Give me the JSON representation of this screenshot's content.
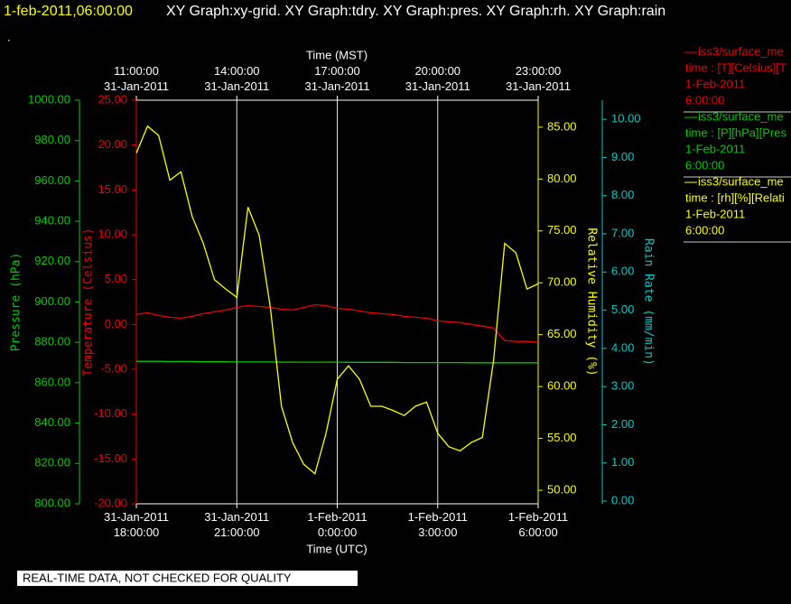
{
  "chart_data": {
    "type": "line",
    "title_time": "1-feb-2011,06:00:00",
    "title": "XY Graph:xy-grid.  XY Graph:tdry.  XY Graph:pres.  XY Graph:rh.  XY Graph:rain",
    "subtitle": ".",
    "xlabel": "Time (UTC)",
    "x2label": "Time (MST)",
    "xlim": [
      "2011-01-31T18:00:00",
      "2011-02-01T06:00:00"
    ],
    "xticks": [
      {
        "value": "2011-01-31T18:00:00",
        "label": [
          "31-Jan-2011",
          "18:00:00"
        ]
      },
      {
        "value": "2011-01-31T21:00:00",
        "label": [
          "31-Jan-2011",
          "21:00:00"
        ]
      },
      {
        "value": "2011-02-01T00:00:00",
        "label": [
          "1-Feb-2011",
          "0:00:00"
        ]
      },
      {
        "value": "2011-02-01T03:00:00",
        "label": [
          "1-Feb-2011",
          "3:00:00"
        ]
      },
      {
        "value": "2011-02-01T06:00:00",
        "label": [
          "1-Feb-2011",
          "6:00:00"
        ]
      }
    ],
    "x2ticks": [
      {
        "value": "2011-01-31T18:00:00",
        "label": [
          "11:00:00",
          "31-Jan-2011"
        ]
      },
      {
        "value": "2011-01-31T21:00:00",
        "label": [
          "14:00:00",
          "31-Jan-2011"
        ]
      },
      {
        "value": "2011-02-01T00:00:00",
        "label": [
          "17:00:00",
          "31-Jan-2011"
        ]
      },
      {
        "value": "2011-02-01T03:00:00",
        "label": [
          "20:00:00",
          "31-Jan-2011"
        ]
      },
      {
        "value": "2011-02-01T06:00:00",
        "label": [
          "23:00:00",
          "31-Jan-2011"
        ]
      }
    ],
    "grid": true,
    "y_axes": [
      {
        "id": "pressure",
        "label": "Pressure (hPa)",
        "color": "#00cc00",
        "lim": [
          800,
          1000
        ],
        "ticks": [
          {
            "value": 800,
            "label": "800.00"
          },
          {
            "value": 820,
            "label": "820.00"
          },
          {
            "value": 840,
            "label": "840.00"
          },
          {
            "value": 860,
            "label": "860.00"
          },
          {
            "value": 880,
            "label": "880.00"
          },
          {
            "value": 900,
            "label": "900.00"
          },
          {
            "value": 920,
            "label": "920.00"
          },
          {
            "value": 940,
            "label": "940.00"
          },
          {
            "value": 960,
            "label": "960.00"
          },
          {
            "value": 980,
            "label": "980.00"
          },
          {
            "value": 1000,
            "label": "1000.00"
          }
        ]
      },
      {
        "id": "temperature",
        "label": "Temperature (Celsius)",
        "color": "#ee0000",
        "lim": [
          -20,
          25
        ],
        "ticks": [
          {
            "value": -20,
            "label": "-20.00"
          },
          {
            "value": -15,
            "label": "-15.00"
          },
          {
            "value": -10,
            "label": "-10.00"
          },
          {
            "value": -5,
            "label": "-5.00"
          },
          {
            "value": 0,
            "label": "0.00"
          },
          {
            "value": 5,
            "label": "5.00"
          },
          {
            "value": 10,
            "label": "10.00"
          },
          {
            "value": 15,
            "label": "15.00"
          },
          {
            "value": 20,
            "label": "20.00"
          },
          {
            "value": 25,
            "label": "25.00"
          }
        ]
      },
      {
        "id": "rh",
        "label": "Relative Humidity (%)",
        "color": "#ffff00",
        "lim": [
          48.7,
          87.6
        ],
        "ticks": [
          {
            "value": 50,
            "label": "50.00"
          },
          {
            "value": 55,
            "label": "55.00"
          },
          {
            "value": 60,
            "label": "60.00"
          },
          {
            "value": 65,
            "label": "65.00"
          },
          {
            "value": 70,
            "label": "70.00"
          },
          {
            "value": 75,
            "label": "75.00"
          },
          {
            "value": 80,
            "label": "80.00"
          },
          {
            "value": 85,
            "label": "85.00"
          }
        ]
      },
      {
        "id": "rain",
        "label": "Rain Rate (mm/min)",
        "color": "#00cccc",
        "lim": [
          -0.07,
          10.5
        ],
        "ticks": [
          {
            "value": 0,
            "label": "0.00"
          },
          {
            "value": 1,
            "label": "1.00"
          },
          {
            "value": 2,
            "label": "2.00"
          },
          {
            "value": 3,
            "label": "3.00"
          },
          {
            "value": 4,
            "label": "4.00"
          },
          {
            "value": 5,
            "label": "5.00"
          },
          {
            "value": 6,
            "label": "6.00"
          },
          {
            "value": 7,
            "label": "7.00"
          },
          {
            "value": 8,
            "label": "8.00"
          },
          {
            "value": 9,
            "label": "9.00"
          },
          {
            "value": 10,
            "label": "10.00"
          }
        ]
      }
    ],
    "x": [
      "2011-01-31T18:00:00",
      "2011-01-31T18:20:00",
      "2011-01-31T18:40:00",
      "2011-01-31T19:00:00",
      "2011-01-31T19:20:00",
      "2011-01-31T19:40:00",
      "2011-01-31T20:00:00",
      "2011-01-31T20:20:00",
      "2011-01-31T20:40:00",
      "2011-01-31T21:00:00",
      "2011-01-31T21:20:00",
      "2011-01-31T21:40:00",
      "2011-01-31T22:00:00",
      "2011-01-31T22:20:00",
      "2011-01-31T22:40:00",
      "2011-01-31T23:00:00",
      "2011-01-31T23:20:00",
      "2011-01-31T23:40:00",
      "2011-02-01T00:00:00",
      "2011-02-01T00:20:00",
      "2011-02-01T00:40:00",
      "2011-02-01T01:00:00",
      "2011-02-01T01:20:00",
      "2011-02-01T01:40:00",
      "2011-02-01T02:00:00",
      "2011-02-01T02:20:00",
      "2011-02-01T02:40:00",
      "2011-02-01T03:00:00",
      "2011-02-01T03:20:00",
      "2011-02-01T03:40:00",
      "2011-02-01T04:00:00",
      "2011-02-01T04:20:00",
      "2011-02-01T04:40:00",
      "2011-02-01T05:00:00",
      "2011-02-01T05:20:00",
      "2011-02-01T05:40:00",
      "2011-02-01T06:00:00"
    ],
    "series": [
      {
        "name": "iss3/surface_me",
        "color": "#ee0000",
        "axis": "temperature",
        "legend_lines": [
          "time : [T][Celsius][T",
          "1-Feb-2011",
          "6:00:00"
        ],
        "values": [
          1.1,
          1.3,
          1.0,
          0.8,
          0.7,
          0.9,
          1.2,
          1.4,
          1.6,
          1.9,
          2.1,
          2.0,
          1.9,
          1.7,
          1.6,
          1.9,
          2.2,
          2.1,
          1.8,
          1.7,
          1.5,
          1.3,
          1.2,
          1.1,
          0.9,
          0.8,
          0.7,
          0.4,
          0.3,
          0.2,
          0.0,
          -0.2,
          -0.4,
          -1.8,
          -1.9,
          -1.9,
          -2.0
        ]
      },
      {
        "name": "iss3/surface_me",
        "color": "#00cc00",
        "axis": "pressure",
        "legend_lines": [
          "time : [P][hPa][Pres",
          "1-Feb-2011",
          "6:00:00"
        ],
        "values": [
          870.6,
          870.6,
          870.6,
          870.5,
          870.5,
          870.5,
          870.4,
          870.4,
          870.4,
          870.3,
          870.3,
          870.3,
          870.3,
          870.2,
          870.2,
          870.2,
          870.2,
          870.2,
          870.2,
          870.1,
          870.1,
          870.1,
          870.1,
          870.1,
          870.0,
          870.0,
          870.0,
          870.0,
          870.0,
          870.0,
          869.9,
          869.9,
          869.9,
          869.9,
          869.9,
          869.9,
          869.9
        ]
      },
      {
        "name": "iss3/surface_me",
        "color": "#ffff00",
        "axis": "rh",
        "legend_lines": [
          "time : [rh][%][Relati",
          "1-Feb-2011",
          "6:00:00"
        ],
        "values": [
          82.5,
          85.1,
          84.2,
          79.9,
          80.7,
          76.4,
          73.8,
          70.3,
          69.4,
          68.6,
          77.3,
          74.6,
          67.7,
          58.1,
          54.6,
          52.5,
          51.6,
          55.5,
          60.7,
          62.0,
          60.7,
          58.1,
          58.1,
          57.7,
          57.2,
          58.1,
          58.5,
          55.5,
          54.2,
          53.8,
          54.6,
          55.1,
          62.5,
          73.8,
          72.9,
          69.4,
          69.9
        ]
      }
    ],
    "footer": "REAL-TIME DATA, NOT CHECKED FOR QUALITY"
  }
}
